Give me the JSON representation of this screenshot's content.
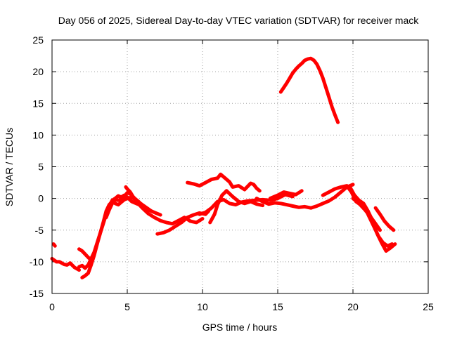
{
  "chart_data": {
    "type": "line",
    "title": "Day 056 of 2025, Sidereal Day-to-day VTEC variation (SDTVAR) for receiver mack",
    "xlabel": "GPS time / hours",
    "ylabel": "SDTVAR / TECUs",
    "xlim": [
      0,
      25
    ],
    "ylim": [
      -15,
      25
    ],
    "xticks": [
      "0",
      "5",
      "10",
      "15",
      "20",
      "25"
    ],
    "yticks": [
      "-15",
      "-10",
      "-5",
      "0",
      "5",
      "10",
      "15",
      "20",
      "25"
    ],
    "grid": true,
    "color": "#ff0000",
    "series": [
      {
        "name": "trace-1",
        "x": [
          0,
          0.3,
          0.5,
          0.8,
          1.0,
          1.2,
          1.5,
          1.8
        ],
        "y": [
          -9.5,
          -10.0,
          -10.0,
          -10.4,
          -10.5,
          -10.2,
          -10.9,
          -11.3
        ]
      },
      {
        "name": "trace-2",
        "x": [
          0.1,
          0.2
        ],
        "y": [
          -7.2,
          -7.5
        ]
      },
      {
        "name": "trace-3",
        "x": [
          1.8,
          2.0,
          2.2,
          2.4,
          2.6,
          2.8,
          3.0,
          3.2,
          3.4,
          3.6,
          3.8,
          4.0,
          4.2,
          4.4,
          4.6,
          4.8,
          5.0,
          5.3,
          5.6,
          6.0,
          6.3,
          6.6,
          6.9,
          7.2
        ],
        "y": [
          -10.8,
          -10.6,
          -11.0,
          -10.5,
          -9.5,
          -8.5,
          -7.0,
          -5.5,
          -4.0,
          -2.5,
          -1.2,
          -0.3,
          0.0,
          0.4,
          0.2,
          0.5,
          0.2,
          -0.5,
          -0.8,
          -1.2,
          -1.7,
          -2.0,
          -2.3,
          -2.6
        ]
      },
      {
        "name": "trace-4",
        "x": [
          2.0,
          2.2,
          2.4,
          2.6,
          2.8,
          3.0,
          3.2,
          3.4,
          3.6,
          3.8,
          4.0,
          4.2,
          4.4,
          4.6,
          4.8,
          5.0,
          5.3,
          5.6,
          6.0,
          6.3,
          6.6
        ],
        "y": [
          -12.5,
          -12.2,
          -11.8,
          -10.5,
          -9.0,
          -7.2,
          -5.5,
          -3.8,
          -2.0,
          -1.0,
          -0.5,
          -0.8,
          -1.0,
          -0.6,
          -0.2,
          0.0,
          0.2,
          -0.3,
          -1.0,
          -1.5,
          -2.0
        ]
      },
      {
        "name": "trace-5",
        "x": [
          1.8,
          2.0,
          2.2,
          2.4,
          2.6
        ],
        "y": [
          -8.0,
          -8.3,
          -8.8,
          -9.3,
          -9.7
        ]
      },
      {
        "name": "trace-6",
        "x": [
          3.6,
          3.8,
          4.0,
          4.2,
          4.4,
          4.6,
          4.8,
          5.0,
          5.2,
          5.5,
          5.8
        ],
        "y": [
          -3.0,
          -1.8,
          -0.8,
          -0.2,
          -0.3,
          -0.1,
          0.3,
          0.9,
          0.7,
          0.0,
          -0.6
        ]
      },
      {
        "name": "trace-7",
        "x": [
          4.9,
          5.0,
          5.2,
          5.4,
          5.6,
          5.8,
          6.0
        ],
        "y": [
          1.8,
          1.5,
          1.0,
          0.2,
          -0.5,
          -1.0,
          -1.5
        ]
      },
      {
        "name": "trace-8",
        "x": [
          6.0,
          6.4,
          6.8,
          7.2,
          7.6,
          8.0,
          8.4,
          8.8,
          9.0,
          9.2,
          9.6,
          10.0
        ],
        "y": [
          -1.5,
          -2.4,
          -3.0,
          -3.5,
          -3.8,
          -4.0,
          -3.5,
          -3.0,
          -3.3,
          -3.6,
          -3.8,
          -3.2
        ]
      },
      {
        "name": "trace-9",
        "x": [
          7.0,
          7.4,
          7.8,
          8.2,
          8.6,
          9.0,
          9.4,
          9.8,
          10.2,
          10.4
        ],
        "y": [
          -5.6,
          -5.4,
          -5.0,
          -4.4,
          -3.8,
          -3.0,
          -2.6,
          -2.3,
          -2.5,
          -2.0
        ]
      },
      {
        "name": "trace-10",
        "x": [
          9.0,
          9.4,
          9.8,
          10.2,
          10.6,
          11.0,
          11.2,
          11.5,
          11.8,
          12.0,
          12.4,
          12.8,
          13.2,
          13.4,
          13.6,
          13.8
        ],
        "y": [
          2.5,
          2.3,
          2.0,
          2.5,
          3.0,
          3.2,
          3.8,
          3.2,
          2.6,
          1.8,
          2.0,
          1.4,
          2.4,
          2.2,
          1.6,
          1.2
        ]
      },
      {
        "name": "trace-11",
        "x": [
          9.8,
          10.2,
          10.6,
          11.0,
          11.4,
          11.8,
          12.2,
          12.6,
          13.0,
          13.5,
          14.0,
          14.5,
          15.0,
          15.5,
          16.0
        ],
        "y": [
          -2.5,
          -2.2,
          -1.5,
          -0.5,
          -0.2,
          -0.8,
          -1.0,
          -0.6,
          -0.4,
          -0.3,
          -0.2,
          -0.3,
          0.0,
          0.6,
          0.3
        ]
      },
      {
        "name": "trace-12",
        "x": [
          10.5,
          10.8,
          11.0,
          11.3,
          11.6,
          12.0,
          12.4,
          12.8,
          13.2,
          13.6,
          14.0
        ],
        "y": [
          -3.8,
          -2.5,
          -1.0,
          0.5,
          1.2,
          0.3,
          -0.5,
          -0.8,
          -0.5,
          -0.9,
          -1.1
        ]
      },
      {
        "name": "trace-13",
        "x": [
          13.6,
          14.0,
          14.4,
          14.8,
          15.2,
          15.6,
          16.0,
          16.4,
          16.8,
          17.2,
          17.6,
          18.0,
          18.4,
          18.8,
          19.2,
          19.6,
          20.0
        ],
        "y": [
          0.0,
          -0.5,
          -0.9,
          -0.7,
          -0.8,
          -1.0,
          -1.2,
          -1.4,
          -1.3,
          -1.5,
          -1.2,
          -0.8,
          -0.4,
          0.2,
          1.0,
          1.8,
          2.2
        ]
      },
      {
        "name": "trace-14",
        "x": [
          14.5,
          15.0,
          15.4,
          15.8,
          16.2,
          16.6
        ],
        "y": [
          0.0,
          0.5,
          1.0,
          0.8,
          0.6,
          1.2
        ]
      },
      {
        "name": "trace-15",
        "x": [
          15.2,
          15.4,
          15.6,
          15.8,
          16.0,
          16.2,
          16.4,
          16.6,
          16.8,
          17.0,
          17.2,
          17.4,
          17.6,
          17.8,
          18.0,
          18.2,
          18.4,
          18.6,
          18.8,
          19.0
        ],
        "y": [
          16.8,
          17.5,
          18.2,
          19.0,
          19.8,
          20.4,
          20.9,
          21.3,
          21.8,
          22.0,
          22.1,
          21.8,
          21.2,
          20.2,
          19.0,
          17.5,
          16.0,
          14.5,
          13.2,
          12.0
        ]
      },
      {
        "name": "trace-16",
        "x": [
          18.0,
          18.4,
          18.8,
          19.2,
          19.6,
          19.9,
          20.2,
          20.5,
          20.8,
          21.1,
          21.4,
          21.7,
          22.0,
          22.3,
          22.6
        ],
        "y": [
          0.5,
          1.0,
          1.5,
          1.8,
          2.0,
          1.0,
          -0.5,
          -1.0,
          -1.5,
          -3.0,
          -4.5,
          -6.0,
          -7.0,
          -7.5,
          -7.2
        ]
      },
      {
        "name": "trace-17",
        "x": [
          19.8,
          20.1,
          20.4,
          20.7,
          21.0,
          21.3,
          21.6,
          21.9,
          22.2,
          22.5,
          22.8
        ],
        "y": [
          1.8,
          0.5,
          -0.3,
          -0.8,
          -2.0,
          -3.5,
          -5.5,
          -7.0,
          -8.3,
          -7.8,
          -7.2
        ]
      },
      {
        "name": "trace-18",
        "x": [
          20.0,
          20.4,
          20.8,
          21.2,
          21.5,
          21.8
        ],
        "y": [
          0.0,
          -0.8,
          -1.8,
          -3.0,
          -4.0,
          -5.0
        ]
      },
      {
        "name": "trace-19",
        "x": [
          21.5,
          21.8,
          22.1,
          22.4,
          22.7
        ],
        "y": [
          -1.5,
          -2.5,
          -3.6,
          -4.4,
          -5.0
        ]
      }
    ]
  }
}
